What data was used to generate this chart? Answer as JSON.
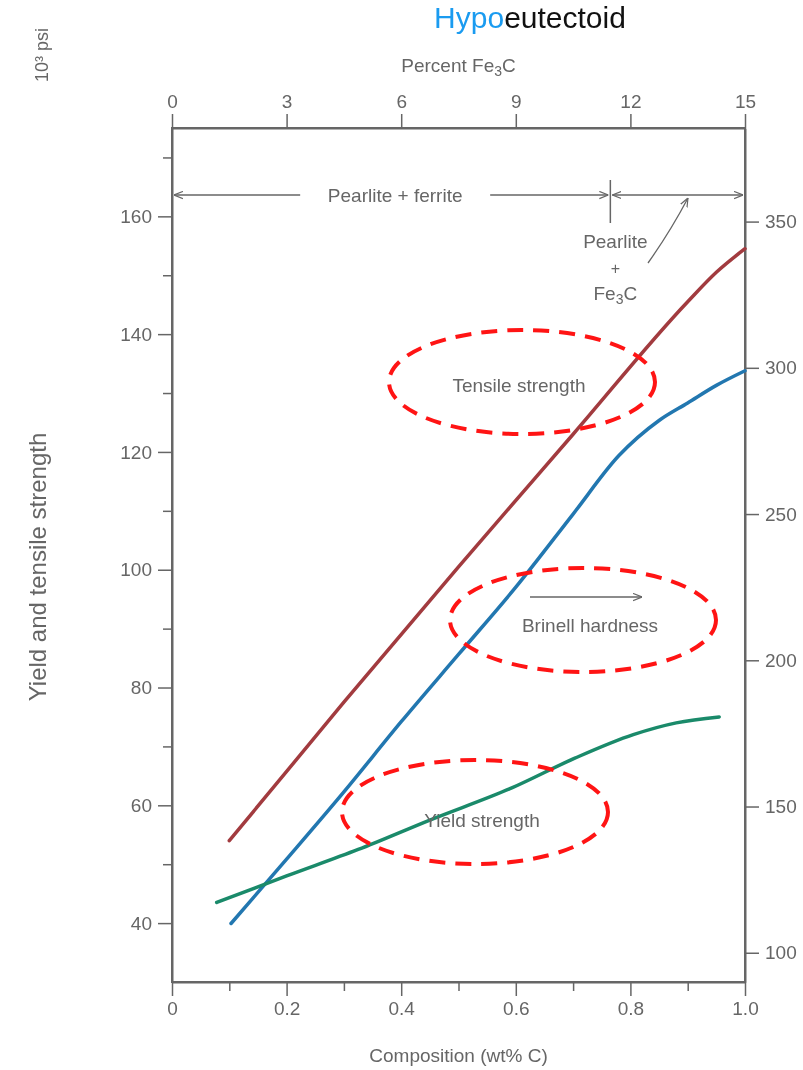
{
  "chart_data": {
    "type": "line",
    "title": "Hypoeutectoid",
    "xlabel": "Composition (wt% C)",
    "ylabel": "Yield and tensile strength",
    "x2label": "Percent Fe$_{3}$C",
    "xlim": [
      0,
      1
    ],
    "xticks": [
      0,
      {
        "value": 0.1,
        "label": null
      },
      0.2,
      {
        "value": 0.3,
        "label": null
      },
      0.4,
      {
        "value": 0.5,
        "label": null
      },
      0.6,
      {
        "value": 0.7,
        "label": null
      },
      0.8,
      {
        "value": 0.9,
        "label": null
      },
      {
        "value": 1,
        "label": "1.0"
      }
    ],
    "x2lim": [
      0,
      15
    ],
    "x2ticks": [
      0,
      3,
      6,
      9,
      12,
      15
    ],
    "ylim": [
      30,
      175
    ],
    "yticks": [
      40,
      {
        "value": 50,
        "label": null
      },
      60,
      {
        "value": 70,
        "label": null
      },
      80,
      {
        "value": 90,
        "label": null
      },
      100,
      {
        "value": 110,
        "label": null
      },
      120,
      {
        "value": 130,
        "label": null
      },
      140,
      {
        "value": 150,
        "label": null
      },
      160,
      {
        "value": 170,
        "label": null
      }
    ],
    "y2lim": [
      90,
      382
    ],
    "y2ticks": [
      100,
      150,
      200,
      250,
      300,
      350
    ],
    "annotations": [
      "10³ psi",
      "Pearlite + ferrite",
      "Pearlite + Fe$_{3}$C"
    ],
    "series": [
      {
        "name": "Tensile strength",
        "color": "#a23b3f",
        "x": [
          0.1,
          0.3,
          0.5,
          0.7,
          0.9,
          0.95,
          1.0
        ],
        "values": [
          54,
          77.5,
          100.5,
          123,
          145.5,
          150.5,
          154.5
        ]
      },
      {
        "name": "Brinell hardness",
        "color": "#2277b0",
        "axis": "y2",
        "x": [
          0.103,
          0.2,
          0.3,
          0.4,
          0.5,
          0.6,
          0.7,
          0.78,
          0.85,
          0.9,
          0.95,
          1.0
        ],
        "values": [
          110,
          132,
          155,
          179,
          202,
          225,
          250,
          270,
          282,
          288,
          294,
          299
        ]
      },
      {
        "name": "Yield strength",
        "color": "#1a8a6a",
        "x": [
          0.078,
          0.2,
          0.325,
          0.45,
          0.594,
          0.703,
          0.805,
          0.88,
          0.955
        ],
        "values": [
          43.5,
          48,
          52.5,
          57.5,
          63,
          68,
          72,
          74,
          75
        ]
      }
    ]
  }
}
